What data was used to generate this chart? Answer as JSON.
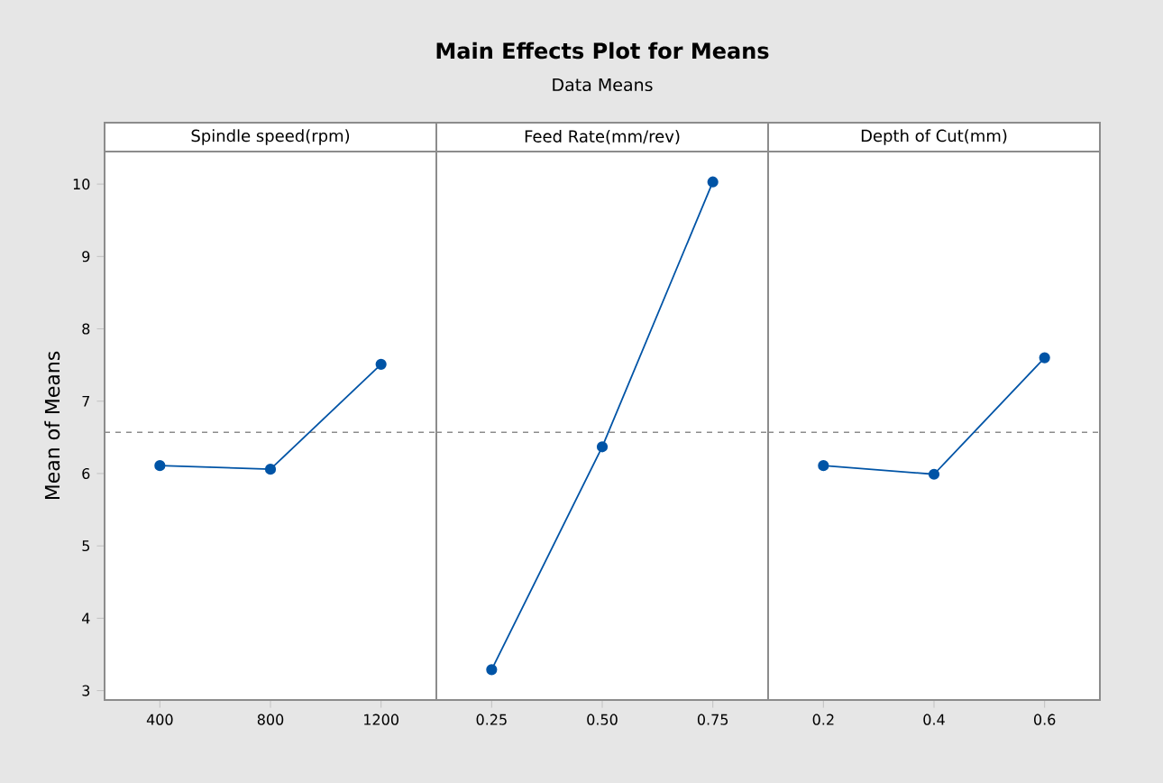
{
  "chart_data": [
    {
      "type": "line",
      "xlabel": "Spindle speed(rpm)",
      "ylabel": "Mean of Means",
      "categories": [
        "400",
        "800",
        "1200"
      ],
      "series": [
        {
          "color": "#0054a6",
          "values": [
            6.11,
            6.06,
            7.51
          ]
        }
      ],
      "ylim": [
        2.87,
        10.45
      ],
      "yticks": [
        3,
        4,
        5,
        6,
        7,
        8,
        9,
        10
      ],
      "ref_lines": [
        {
          "axis": "y",
          "value": 6.57,
          "color": "#8c8c8c",
          "line_style": "dashed"
        }
      ],
      "marker": "circle",
      "line_style": "solid"
    },
    {
      "type": "line",
      "title": "Main Effects Plot for Means",
      "subtitle": "Data Means",
      "xlabel": "Feed Rate(mm/rev)",
      "categories": [
        "0.25",
        "0.50",
        "0.75"
      ],
      "series": [
        {
          "color": "#0054a6",
          "values": [
            3.29,
            6.37,
            10.03
          ]
        }
      ],
      "ylim": [
        2.87,
        10.45
      ],
      "tick_labels": "x",
      "ref_lines": [
        {
          "axis": "y",
          "value": 6.57,
          "color": "#8c8c8c",
          "line_style": "dashed"
        }
      ],
      "marker": "circle",
      "line_style": "solid"
    },
    {
      "type": "line",
      "xlabel": "Depth of Cut(mm)",
      "categories": [
        "0.2",
        "0.4",
        "0.6"
      ],
      "series": [
        {
          "color": "#0054a6",
          "values": [
            6.11,
            5.99,
            7.6
          ]
        }
      ],
      "ylim": [
        2.87,
        10.45
      ],
      "tick_labels": "x",
      "ref_lines": [
        {
          "axis": "y",
          "value": 6.57,
          "color": "#8c8c8c",
          "line_style": "dashed"
        }
      ],
      "marker": "circle",
      "line_style": "solid"
    }
  ]
}
